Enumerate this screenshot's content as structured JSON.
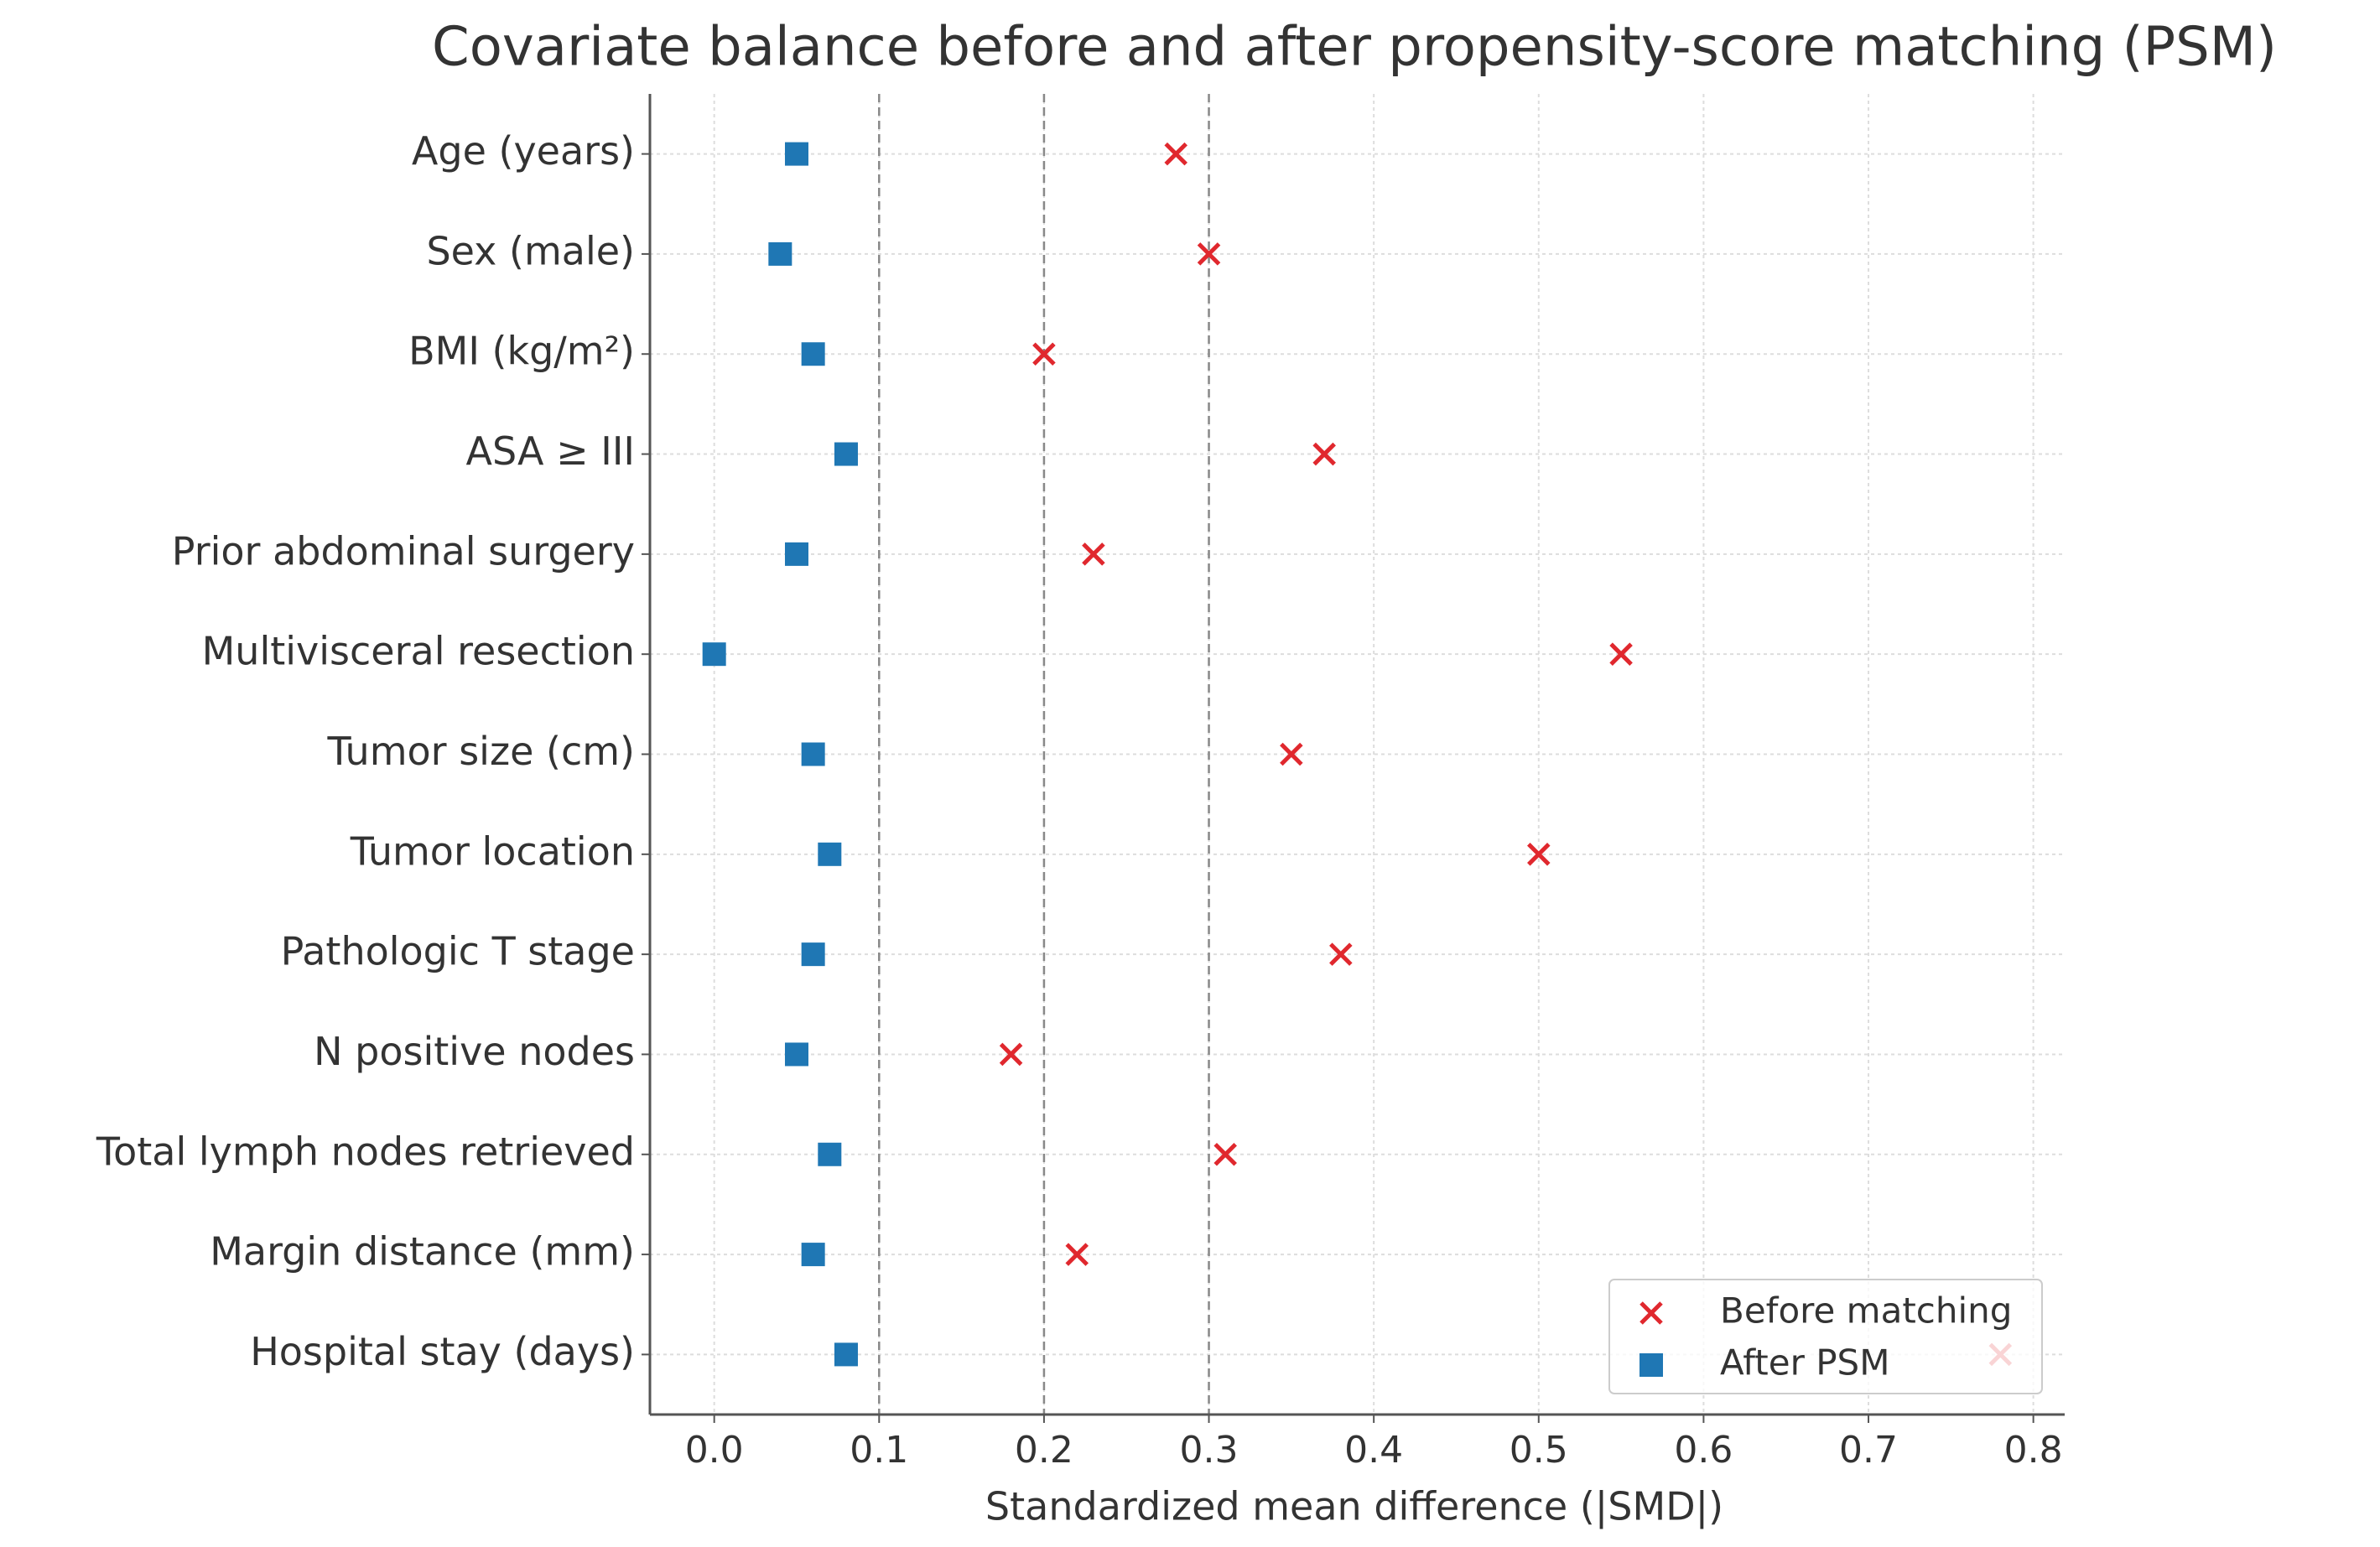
{
  "chart_data": {
    "type": "dot",
    "title": "Covariate balance before and after propensity-score matching (PSM)",
    "xlabel": "Standardized mean difference (|SMD|)",
    "categories": [
      "Age (years)",
      "Sex (male)",
      "BMI (kg/m²)",
      "ASA ≥ III",
      "Prior abdominal surgery",
      "Multivisceral resection",
      "Tumor size (cm)",
      "Tumor location",
      "Pathologic T stage",
      "N positive nodes",
      "Total lymph nodes retrieved",
      "Margin distance (mm)",
      "Hospital stay (days)"
    ],
    "series": [
      {
        "name": "Before matching",
        "color": "#e0282e",
        "marker": "x",
        "values": [
          0.28,
          0.3,
          0.2,
          0.37,
          0.23,
          0.55,
          0.35,
          0.5,
          0.38,
          0.18,
          0.31,
          0.22,
          0.78
        ]
      },
      {
        "name": "After PSM",
        "color": "#1f77b4",
        "marker": "square",
        "values": [
          0.05,
          0.04,
          0.06,
          0.08,
          0.05,
          0.0,
          0.06,
          0.07,
          0.06,
          0.05,
          0.07,
          0.06,
          0.08
        ]
      }
    ],
    "xlim": [
      -0.039,
      0.819
    ],
    "xticks": [
      {
        "value": 0,
        "label": "0.0"
      },
      0.1,
      0.2,
      0.3,
      0.4,
      0.5,
      0.6,
      0.7,
      0.8
    ],
    "reference_lines": [
      0.1,
      0.2,
      0.3
    ],
    "grid": true,
    "legend": "lower right"
  }
}
